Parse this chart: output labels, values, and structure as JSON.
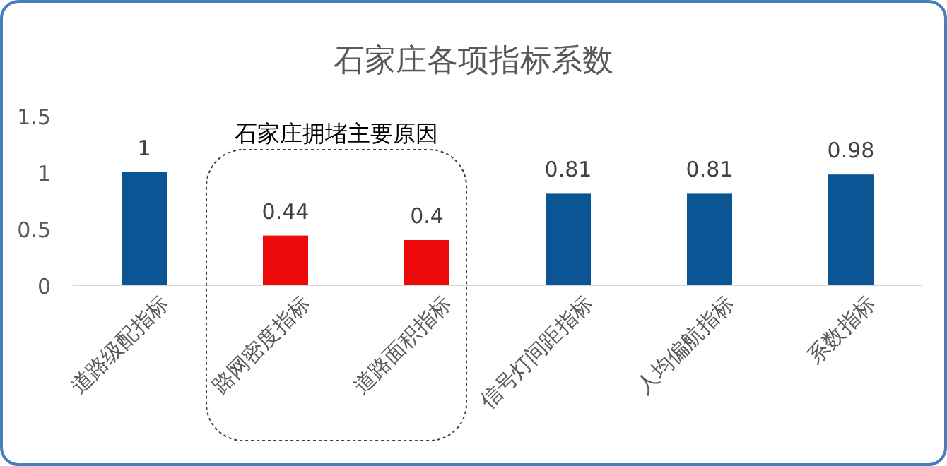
{
  "chart_data": {
    "type": "bar",
    "title": "石家庄各项指标系数",
    "categories": [
      "道路级配指标",
      "路网密度指标",
      "道路面积指标",
      "信号灯间距指标",
      "人均偏航指标",
      "系数指标"
    ],
    "values": [
      1,
      0.44,
      0.4,
      0.81,
      0.81,
      0.98
    ],
    "colors": [
      "#0b5595",
      "#ee0a0a",
      "#ee0a0a",
      "#0b5595",
      "#0b5595",
      "#0b5595"
    ],
    "ylim": [
      0,
      1.5
    ],
    "yticks": [
      0,
      0.5,
      1,
      1.5
    ],
    "grid": false,
    "data_labels": true,
    "annotations": [
      "石家庄拥堵主要原因"
    ]
  }
}
